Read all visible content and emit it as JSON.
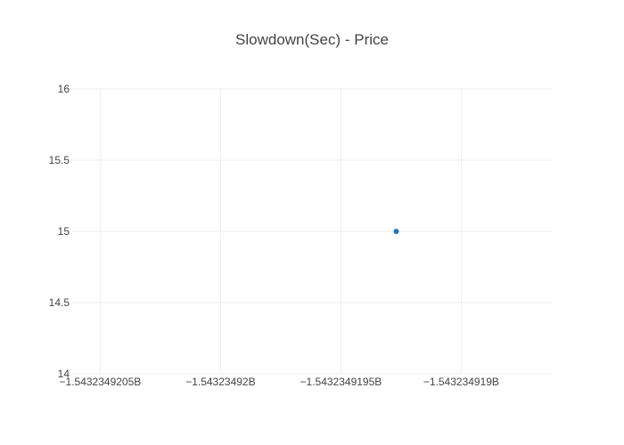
{
  "chart_data": {
    "type": "scatter",
    "title": "Slowdown(Sec) - Price",
    "xlabel": "",
    "ylabel": "",
    "x_tick_labels": [
      "−1.5432349205B",
      "−1.54323492B",
      "−1.5432349195B",
      "−1.543234919B"
    ],
    "x_tick_values": [
      -1543234920.5,
      -1543234920.0,
      -1543234919.5,
      -1543234919.0
    ],
    "xlim": [
      -1543234920.62,
      -1543234918.62
    ],
    "y_tick_labels": [
      "14",
      "14.5",
      "15",
      "15.5",
      "16"
    ],
    "y_tick_values": [
      14,
      14.5,
      15,
      15.5,
      16
    ],
    "ylim": [
      14,
      16
    ],
    "grid": true,
    "series": [
      {
        "points": [
          {
            "x": -1543234919.27,
            "y": 15
          }
        ]
      }
    ],
    "colors": {
      "marker": "#1f77b4",
      "grid": "#eeeeee",
      "text": "#444444"
    }
  }
}
